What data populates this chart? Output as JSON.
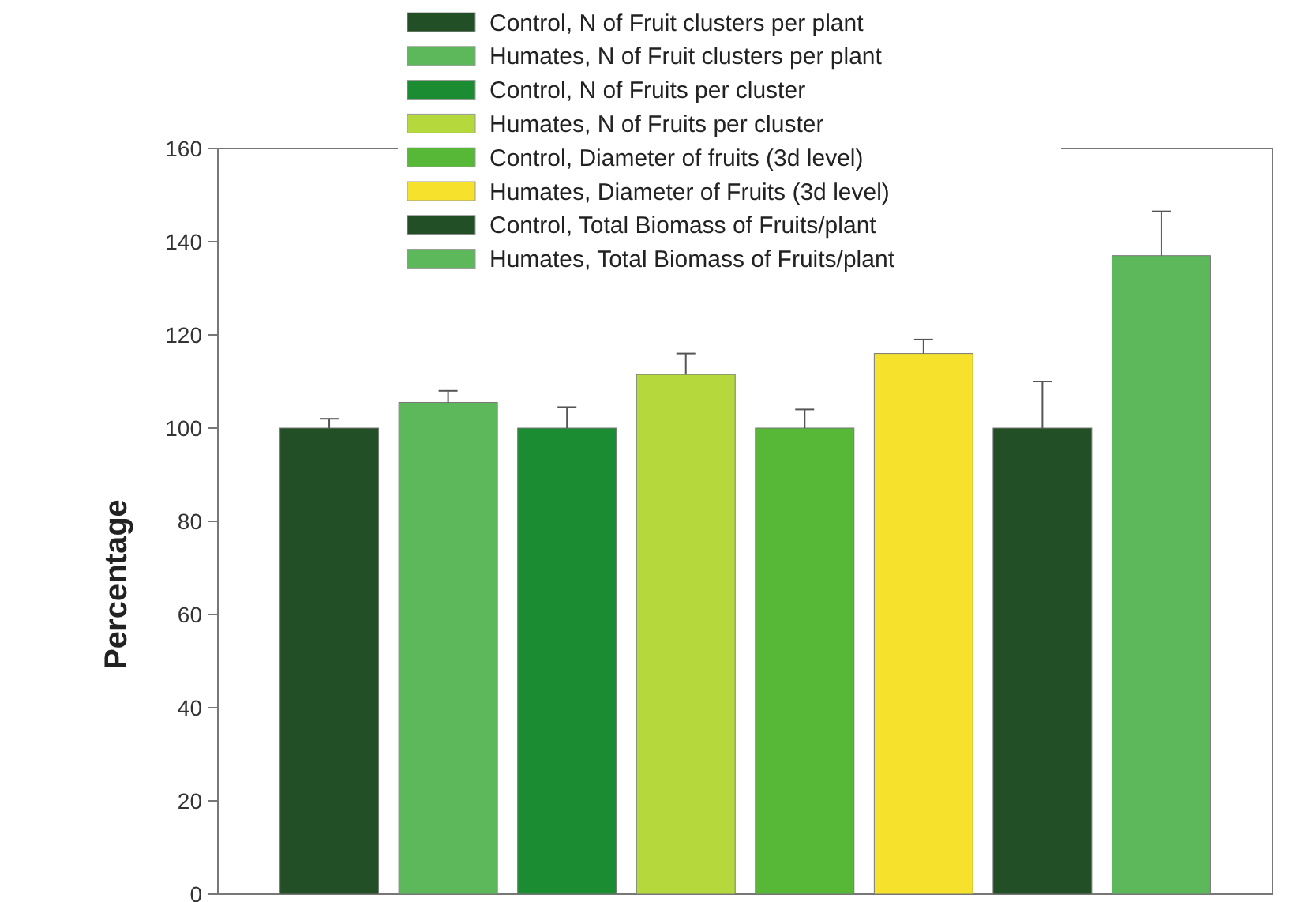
{
  "chart_data": {
    "type": "bar",
    "ylabel": "Percentage",
    "categories": [
      null
    ],
    "ylim": [
      0,
      160
    ],
    "yticks": [
      0,
      20,
      40,
      60,
      80,
      100,
      120,
      140,
      160
    ],
    "grid": false,
    "legend": "top",
    "series": [
      {
        "name": "Control, N of Fruit clusters per plant",
        "color": "#234f27",
        "values": [
          100
        ],
        "errors": [
          [
            100,
            102
          ]
        ]
      },
      {
        "name": "Humates, N of Fruit clusters per plant",
        "color": "#5cb85a",
        "values": [
          105.5
        ],
        "errors": [
          [
            105.5,
            108
          ]
        ]
      },
      {
        "name": "Control, N of Fruits per cluster",
        "color": "#1b8c32",
        "values": [
          100
        ],
        "errors": [
          [
            100,
            104.5
          ]
        ]
      },
      {
        "name": "Humates, N of Fruits per cluster",
        "color": "#b5d93c",
        "values": [
          111.5
        ],
        "errors": [
          [
            111.5,
            116
          ]
        ]
      },
      {
        "name": "Control, Diameter of fruits (3d level)",
        "color": "#56b836",
        "values": [
          100
        ],
        "errors": [
          [
            100,
            104
          ]
        ]
      },
      {
        "name": "Humates, Diameter of Fruits (3d level)",
        "color": "#f6e22c",
        "values": [
          116
        ],
        "errors": [
          [
            116,
            119
          ]
        ]
      },
      {
        "name": "Control, Total Biomass of Fruits/plant",
        "color": "#234f27",
        "values": [
          100
        ],
        "errors": [
          [
            100,
            110
          ]
        ]
      },
      {
        "name": "Humates, Total Biomass of Fruits/plant",
        "color": "#5cb85a",
        "values": [
          137
        ],
        "errors": [
          [
            137,
            146.5
          ]
        ]
      }
    ]
  }
}
